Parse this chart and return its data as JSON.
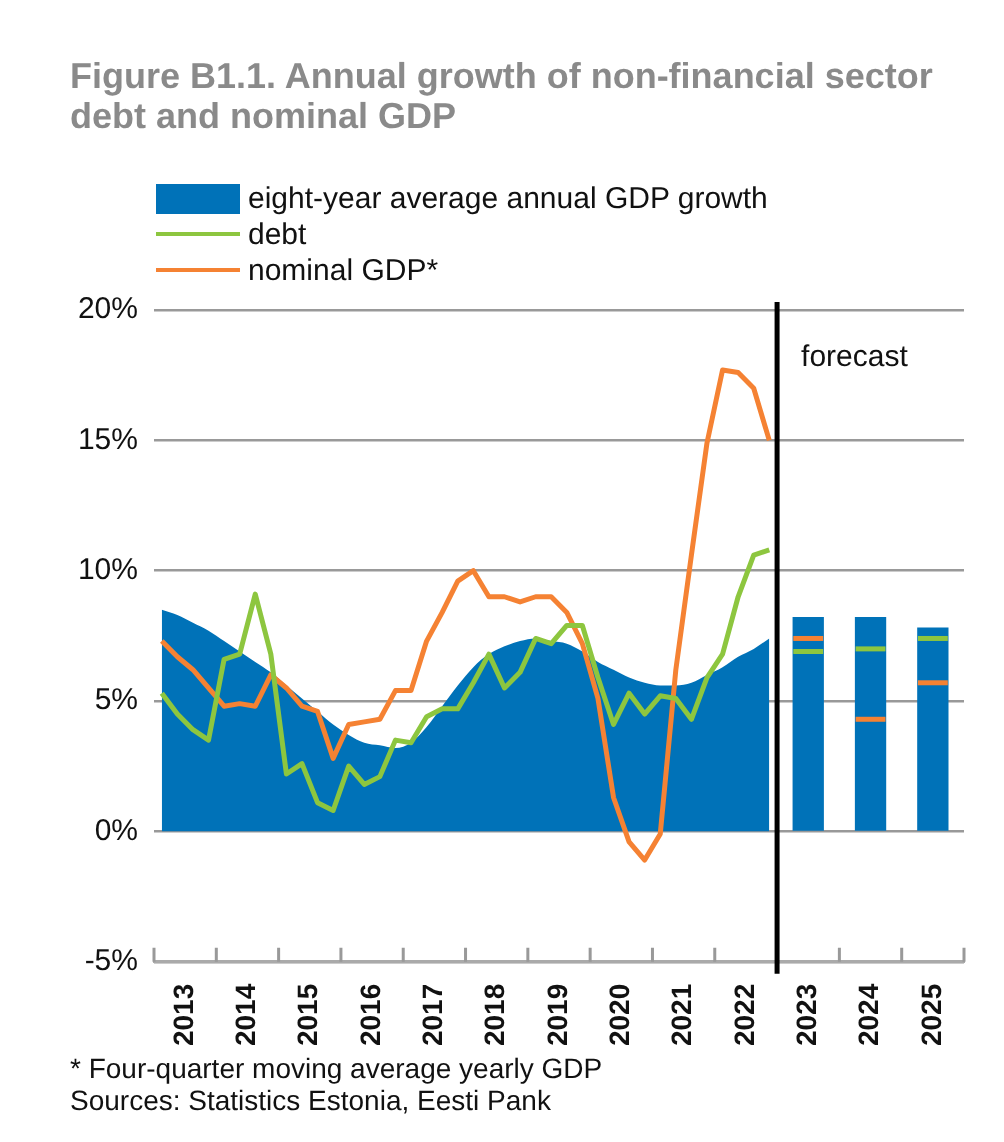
{
  "chart_data": {
    "type": "line",
    "title": "Figure B1.1. Annual growth of non-financial sector debt and nominal GDP",
    "xlim": [
      2013,
      2026
    ],
    "xticks": [
      {
        "value": 2013,
        "label": null
      },
      {
        "value": 2013.5,
        "label": "2013"
      },
      {
        "value": 2014,
        "label": null
      },
      {
        "value": 2014.5,
        "label": "2014"
      },
      {
        "value": 2015,
        "label": null
      },
      {
        "value": 2015.5,
        "label": "2015"
      },
      {
        "value": 2016,
        "label": null
      },
      {
        "value": 2016.5,
        "label": "2016"
      },
      {
        "value": 2017,
        "label": null
      },
      {
        "value": 2017.5,
        "label": "2017"
      },
      {
        "value": 2018,
        "label": null
      },
      {
        "value": 2018.5,
        "label": "2018"
      },
      {
        "value": 2019,
        "label": null
      },
      {
        "value": 2019.5,
        "label": "2019"
      },
      {
        "value": 2020,
        "label": null
      },
      {
        "value": 2020.5,
        "label": "2020"
      },
      {
        "value": 2021,
        "label": null
      },
      {
        "value": 2021.5,
        "label": "2021"
      },
      {
        "value": 2022,
        "label": null
      },
      {
        "value": 2022.5,
        "label": "2022"
      },
      {
        "value": 2023,
        "label": null
      },
      {
        "value": 2023.5,
        "label": "2023"
      },
      {
        "value": 2024,
        "label": null
      },
      {
        "value": 2024.5,
        "label": "2024"
      },
      {
        "value": 2025,
        "label": null
      },
      {
        "value": 2025.5,
        "label": "2025"
      },
      {
        "value": 2026,
        "label": null
      }
    ],
    "ylim": [
      -5,
      20
    ],
    "yticks": [
      {
        "value": -5,
        "label": "-5%"
      },
      {
        "value": 0,
        "label": "0%"
      },
      {
        "value": 5,
        "label": "5%"
      },
      {
        "value": 10,
        "label": "10%"
      },
      {
        "value": 15,
        "label": "15%"
      },
      {
        "value": 20,
        "label": "20%"
      }
    ],
    "grid": "y",
    "legend": "top left",
    "series": [
      {
        "name": "eight-year average annual GDP growth",
        "type": "area",
        "color": "#0072b8",
        "x": [
          2013.125,
          2013.375,
          2013.625,
          2013.875,
          2014.125,
          2014.375,
          2014.625,
          2014.875,
          2015.125,
          2015.375,
          2015.625,
          2015.875,
          2016.125,
          2016.375,
          2016.625,
          2016.875,
          2017.125,
          2017.375,
          2017.625,
          2017.875,
          2018.125,
          2018.375,
          2018.625,
          2018.875,
          2019.125,
          2019.375,
          2019.625,
          2019.875,
          2020.125,
          2020.375,
          2020.625,
          2020.875,
          2021.125,
          2021.375,
          2021.625,
          2021.875,
          2022.125,
          2022.375,
          2022.625,
          2022.875
        ],
        "values": [
          8.5,
          8.3,
          8.0,
          7.7,
          7.3,
          6.9,
          6.5,
          6.1,
          5.6,
          5.1,
          4.6,
          4.1,
          3.7,
          3.4,
          3.3,
          3.2,
          3.4,
          4.0,
          4.8,
          5.6,
          6.3,
          6.8,
          7.1,
          7.3,
          7.4,
          7.3,
          7.2,
          6.9,
          6.5,
          6.2,
          5.9,
          5.7,
          5.6,
          5.6,
          5.7,
          6.0,
          6.3,
          6.7,
          7.0,
          7.4
        ]
      },
      {
        "type": "bar",
        "color": "#0072b8",
        "x": [
          2023.5,
          2024.5,
          2025.5
        ],
        "values": [
          8.2,
          8.2,
          7.8
        ]
      },
      {
        "name": "debt",
        "color": "#8dc63f",
        "x": [
          2013.125,
          2013.375,
          2013.625,
          2013.875,
          2014.125,
          2014.375,
          2014.625,
          2014.875,
          2015.125,
          2015.375,
          2015.625,
          2015.875,
          2016.125,
          2016.375,
          2016.625,
          2016.875,
          2017.125,
          2017.375,
          2017.625,
          2017.875,
          2018.125,
          2018.375,
          2018.625,
          2018.875,
          2019.125,
          2019.375,
          2019.625,
          2019.875,
          2020.125,
          2020.375,
          2020.625,
          2020.875,
          2021.125,
          2021.375,
          2021.625,
          2021.875,
          2022.125,
          2022.375,
          2022.625,
          2022.875
        ],
        "values": [
          5.3,
          4.5,
          3.9,
          3.5,
          6.6,
          6.8,
          9.1,
          6.8,
          2.2,
          2.6,
          1.1,
          0.8,
          2.5,
          1.8,
          2.1,
          3.5,
          3.4,
          4.4,
          4.7,
          4.7,
          5.7,
          6.8,
          5.5,
          6.1,
          7.4,
          7.2,
          7.9,
          7.9,
          5.9,
          4.1,
          5.3,
          4.5,
          5.2,
          5.1,
          4.3,
          5.9,
          6.8,
          9.0,
          10.6,
          10.8
        ]
      },
      {
        "name": "nominal GDP*",
        "color": "#f58233",
        "x": [
          2013.125,
          2013.375,
          2013.625,
          2013.875,
          2014.125,
          2014.375,
          2014.625,
          2014.875,
          2015.125,
          2015.375,
          2015.625,
          2015.875,
          2016.125,
          2016.375,
          2016.625,
          2016.875,
          2017.125,
          2017.375,
          2017.625,
          2017.875,
          2018.125,
          2018.375,
          2018.625,
          2018.875,
          2019.125,
          2019.375,
          2019.625,
          2019.875,
          2020.125,
          2020.375,
          2020.625,
          2020.875,
          2021.125,
          2021.375,
          2021.625,
          2021.875,
          2022.125,
          2022.375,
          2022.625,
          2022.875
        ],
        "values": [
          7.3,
          6.7,
          6.2,
          5.5,
          4.8,
          4.9,
          4.8,
          6.0,
          5.5,
          4.8,
          4.6,
          2.8,
          4.1,
          4.2,
          4.3,
          5.4,
          5.4,
          7.3,
          8.4,
          9.6,
          10.0,
          9.0,
          9.0,
          8.8,
          9.0,
          9.0,
          8.4,
          7.2,
          5.1,
          1.3,
          -0.4,
          -1.1,
          -0.1,
          6.2,
          10.6,
          14.9,
          17.7,
          17.6,
          17.0,
          15.0
        ]
      },
      {
        "color": "#8dc63f",
        "x": [
          2023.26,
          2023.74
        ],
        "values": [
          6.9,
          6.9
        ]
      },
      {
        "color": "#8dc63f",
        "x": [
          2024.26,
          2024.74
        ],
        "values": [
          7.0,
          7.0
        ]
      },
      {
        "color": "#8dc63f",
        "x": [
          2025.26,
          2025.74
        ],
        "values": [
          7.4,
          7.4
        ]
      },
      {
        "color": "#f58233",
        "x": [
          2023.26,
          2023.74
        ],
        "values": [
          7.4,
          7.4
        ]
      },
      {
        "color": "#f58233",
        "x": [
          2024.26,
          2024.74
        ],
        "values": [
          4.3,
          4.3
        ]
      },
      {
        "color": "#f58233",
        "x": [
          2025.26,
          2025.74
        ],
        "values": [
          5.7,
          5.7
        ]
      }
    ],
    "ref_lines": [
      {
        "axis": "x",
        "value": 2023,
        "label": "forecast",
        "color": "#000000"
      }
    ],
    "annotations": [
      "* Four-quarter moving average yearly GDP",
      "Sources: Statistics Estonia, Eesti Pank"
    ]
  }
}
